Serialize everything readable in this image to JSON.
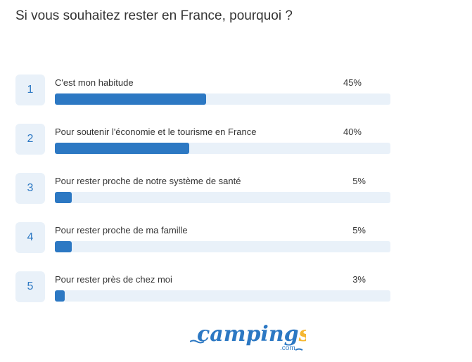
{
  "chart_data": {
    "type": "bar",
    "orientation": "horizontal",
    "title": "Si vous souhaitez rester en France, pourquoi ?",
    "xlim": [
      0,
      100
    ],
    "categories": [
      "C'est mon habitude",
      "Pour soutenir l'économie et le tourisme en France",
      "Pour rester proche de notre système de santé",
      "Pour rester proche de ma famille",
      "Pour rester près de chez moi"
    ],
    "ranks": [
      "1",
      "2",
      "3",
      "4",
      "5"
    ],
    "values": [
      45,
      40,
      5,
      5,
      3
    ],
    "value_labels": [
      "45%",
      "40%",
      "5%",
      "5%",
      "3%"
    ],
    "colors": {
      "bar": "#2c78c3",
      "track": "#e9f1f9"
    }
  },
  "logo": {
    "text": "campings",
    "suffix": ".com"
  }
}
